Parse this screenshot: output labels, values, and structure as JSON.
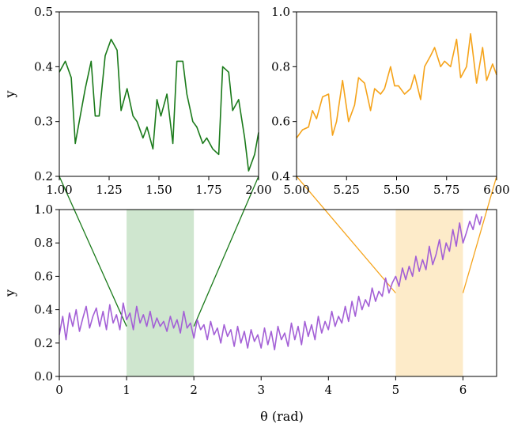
{
  "chart_data": [
    {
      "id": "inset_left",
      "type": "line",
      "xlim": [
        1.0,
        2.0
      ],
      "ylim": [
        0.2,
        0.5
      ],
      "xticks": [
        1.0,
        1.25,
        1.5,
        1.75,
        2.0
      ],
      "xtick_labels": [
        "1.00",
        "1.25",
        "1.50",
        "1.75",
        "2.00"
      ],
      "yticks": [
        0.2,
        0.3,
        0.4,
        0.5
      ],
      "ytick_labels": [
        "0.2",
        "0.3",
        "0.4",
        "0.5"
      ],
      "xlabel": "",
      "ylabel": "y",
      "color": "#1a7a1a",
      "series": [
        {
          "x": [
            1.0,
            1.03,
            1.06,
            1.08,
            1.1,
            1.13,
            1.16,
            1.18,
            1.2,
            1.23,
            1.26,
            1.29,
            1.31,
            1.34,
            1.37,
            1.39,
            1.42,
            1.44,
            1.47,
            1.49,
            1.51,
            1.54,
            1.57,
            1.59,
            1.62,
            1.64,
            1.67,
            1.69,
            1.72,
            1.74,
            1.77,
            1.8,
            1.82,
            1.85,
            1.87,
            1.9,
            1.93,
            1.95,
            1.98,
            2.0
          ],
          "y": [
            0.39,
            0.41,
            0.38,
            0.26,
            0.3,
            0.36,
            0.41,
            0.31,
            0.31,
            0.42,
            0.45,
            0.43,
            0.32,
            0.36,
            0.31,
            0.3,
            0.27,
            0.29,
            0.25,
            0.34,
            0.31,
            0.35,
            0.26,
            0.41,
            0.41,
            0.35,
            0.3,
            0.29,
            0.26,
            0.27,
            0.25,
            0.24,
            0.4,
            0.39,
            0.32,
            0.34,
            0.27,
            0.21,
            0.24,
            0.28
          ]
        }
      ]
    },
    {
      "id": "inset_right",
      "type": "line",
      "xlim": [
        5.0,
        6.0
      ],
      "ylim": [
        0.4,
        1.0
      ],
      "xticks": [
        5.0,
        5.25,
        5.5,
        5.75,
        6.0
      ],
      "xtick_labels": [
        "5.00",
        "5.25",
        "5.50",
        "5.75",
        "6.00"
      ],
      "yticks": [
        0.4,
        0.6,
        0.8,
        1.0
      ],
      "ytick_labels": [
        "0.4",
        "0.6",
        "0.8",
        "1.0"
      ],
      "xlabel": "",
      "ylabel": "",
      "color": "#f5a31a",
      "series": [
        {
          "x": [
            5.0,
            5.03,
            5.06,
            5.08,
            5.1,
            5.13,
            5.16,
            5.18,
            5.2,
            5.23,
            5.26,
            5.29,
            5.31,
            5.34,
            5.37,
            5.39,
            5.42,
            5.44,
            5.47,
            5.49,
            5.51,
            5.54,
            5.57,
            5.59,
            5.62,
            5.64,
            5.67,
            5.69,
            5.72,
            5.74,
            5.77,
            5.8,
            5.82,
            5.85,
            5.87,
            5.9,
            5.93,
            5.95,
            5.98,
            6.0
          ],
          "y": [
            0.54,
            0.57,
            0.58,
            0.64,
            0.61,
            0.69,
            0.7,
            0.55,
            0.6,
            0.75,
            0.6,
            0.66,
            0.76,
            0.74,
            0.64,
            0.72,
            0.7,
            0.72,
            0.8,
            0.73,
            0.73,
            0.7,
            0.72,
            0.77,
            0.68,
            0.8,
            0.84,
            0.87,
            0.8,
            0.82,
            0.8,
            0.9,
            0.76,
            0.8,
            0.92,
            0.74,
            0.87,
            0.75,
            0.81,
            0.77
          ]
        }
      ]
    },
    {
      "id": "main",
      "type": "line",
      "xlim": [
        0,
        6.5
      ],
      "ylim": [
        0.0,
        1.0
      ],
      "xticks": [
        0,
        1,
        2,
        3,
        4,
        5,
        6
      ],
      "xtick_labels": [
        "0",
        "1",
        "2",
        "3",
        "4",
        "5",
        "6"
      ],
      "yticks": [
        0.0,
        0.2,
        0.4,
        0.6,
        0.8,
        1.0
      ],
      "ytick_labels": [
        "0.0",
        "0.2",
        "0.4",
        "0.6",
        "0.8",
        "1.0"
      ],
      "xlabel": "θ (rad)",
      "ylabel": "y",
      "color": "#a35fd6",
      "highlight_regions": [
        {
          "x": [
            1.0,
            2.0
          ],
          "color": "#cfe6cf"
        },
        {
          "x": [
            5.0,
            6.0
          ],
          "color": "#fdebc9"
        }
      ],
      "series": [
        {
          "x": [
            0.0,
            0.05,
            0.1,
            0.15,
            0.2,
            0.25,
            0.3,
            0.35,
            0.4,
            0.45,
            0.5,
            0.55,
            0.6,
            0.65,
            0.7,
            0.75,
            0.8,
            0.85,
            0.9,
            0.95,
            1.0,
            1.05,
            1.1,
            1.15,
            1.2,
            1.25,
            1.3,
            1.35,
            1.4,
            1.45,
            1.5,
            1.55,
            1.6,
            1.65,
            1.7,
            1.75,
            1.8,
            1.85,
            1.9,
            1.95,
            2.0,
            2.05,
            2.1,
            2.15,
            2.2,
            2.25,
            2.3,
            2.35,
            2.4,
            2.45,
            2.5,
            2.55,
            2.6,
            2.65,
            2.7,
            2.75,
            2.8,
            2.85,
            2.9,
            2.95,
            3.0,
            3.05,
            3.1,
            3.15,
            3.2,
            3.25,
            3.3,
            3.35,
            3.4,
            3.45,
            3.5,
            3.55,
            3.6,
            3.65,
            3.7,
            3.75,
            3.8,
            3.85,
            3.9,
            3.95,
            4.0,
            4.05,
            4.1,
            4.15,
            4.2,
            4.25,
            4.3,
            4.35,
            4.4,
            4.45,
            4.5,
            4.55,
            4.6,
            4.65,
            4.7,
            4.75,
            4.8,
            4.85,
            4.9,
            4.95,
            5.0,
            5.05,
            5.1,
            5.15,
            5.2,
            5.25,
            5.3,
            5.35,
            5.4,
            5.45,
            5.5,
            5.55,
            5.6,
            5.65,
            5.7,
            5.75,
            5.8,
            5.85,
            5.9,
            5.95,
            6.0,
            6.05,
            6.1,
            6.15,
            6.2,
            6.25,
            6.28
          ],
          "y": [
            0.25,
            0.36,
            0.22,
            0.38,
            0.3,
            0.4,
            0.27,
            0.35,
            0.42,
            0.29,
            0.36,
            0.41,
            0.3,
            0.39,
            0.28,
            0.43,
            0.32,
            0.37,
            0.28,
            0.44,
            0.34,
            0.38,
            0.28,
            0.42,
            0.32,
            0.37,
            0.3,
            0.39,
            0.29,
            0.35,
            0.3,
            0.33,
            0.27,
            0.36,
            0.29,
            0.34,
            0.26,
            0.39,
            0.29,
            0.32,
            0.23,
            0.34,
            0.28,
            0.31,
            0.22,
            0.33,
            0.25,
            0.29,
            0.2,
            0.31,
            0.24,
            0.28,
            0.18,
            0.3,
            0.2,
            0.27,
            0.17,
            0.28,
            0.21,
            0.25,
            0.17,
            0.29,
            0.19,
            0.27,
            0.16,
            0.3,
            0.22,
            0.26,
            0.18,
            0.32,
            0.22,
            0.3,
            0.19,
            0.33,
            0.24,
            0.31,
            0.22,
            0.36,
            0.26,
            0.33,
            0.28,
            0.39,
            0.3,
            0.36,
            0.32,
            0.42,
            0.33,
            0.45,
            0.36,
            0.48,
            0.4,
            0.46,
            0.42,
            0.53,
            0.45,
            0.51,
            0.48,
            0.59,
            0.5,
            0.56,
            0.6,
            0.54,
            0.65,
            0.58,
            0.66,
            0.6,
            0.72,
            0.63,
            0.7,
            0.64,
            0.78,
            0.67,
            0.73,
            0.82,
            0.7,
            0.8,
            0.75,
            0.88,
            0.78,
            0.92,
            0.8,
            0.86,
            0.93,
            0.88,
            0.97,
            0.91,
            0.96
          ]
        }
      ]
    }
  ],
  "connectors": [
    {
      "color": "#1a7a1a",
      "from_inset": 0,
      "region": [
        1.0,
        2.0
      ],
      "anchor_y": 0.3
    },
    {
      "color": "#f5a31a",
      "from_inset": 1,
      "region": [
        5.0,
        6.0
      ],
      "anchor_y": 0.5
    }
  ]
}
